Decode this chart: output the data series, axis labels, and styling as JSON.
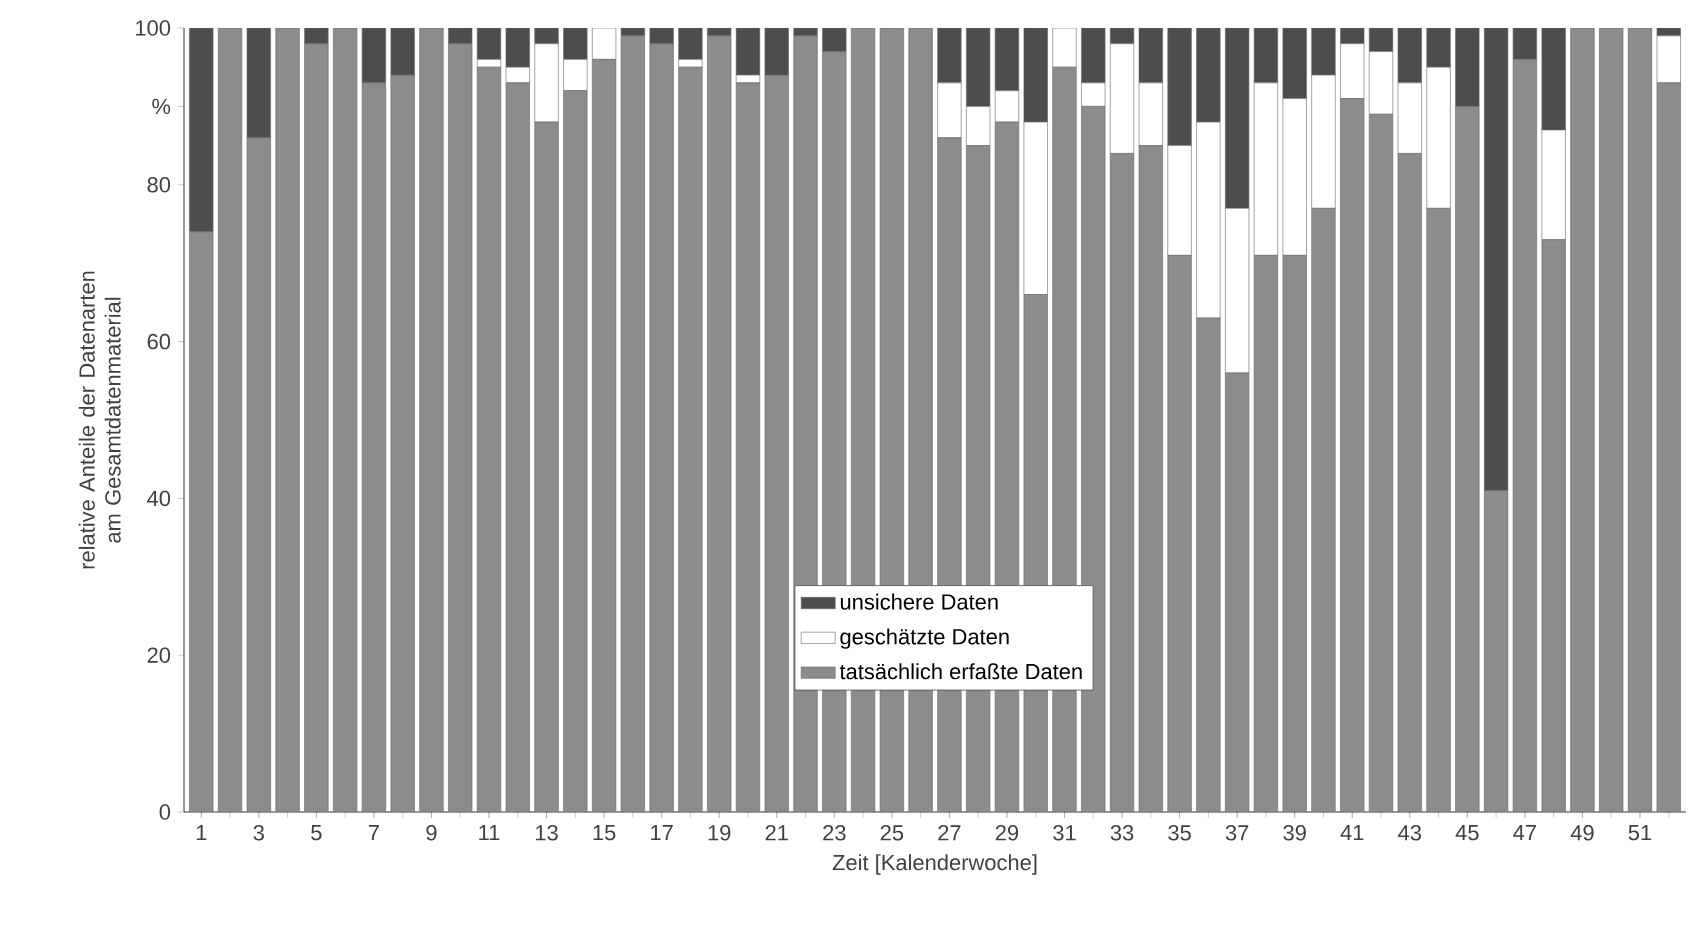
{
  "chart_data": {
    "type": "bar",
    "stacked": true,
    "xlabel": "Zeit [Kalenderwoche]",
    "ylabel": "relative Anteile der Datenarten am Gesamtdatenmaterial",
    "categories": [
      "1",
      null,
      "3",
      null,
      "5",
      null,
      "7",
      null,
      "9",
      null,
      "11",
      null,
      "13",
      null,
      "15",
      null,
      "17",
      null,
      "19",
      null,
      "21",
      null,
      "23",
      null,
      "25",
      null,
      "27",
      null,
      "29",
      null,
      "31",
      null,
      "33",
      null,
      "35",
      null,
      "37",
      null,
      "39",
      null,
      "41",
      null,
      "43",
      null,
      "45",
      null,
      "47",
      null,
      "49",
      null,
      "51",
      null
    ],
    "series": [
      {
        "name": "tatsächlich erfaßte Daten",
        "color": "#8c8c8c",
        "values": [
          74,
          100,
          86,
          100,
          98,
          100,
          93,
          94,
          100,
          98,
          95,
          93,
          88,
          92,
          96,
          99,
          98,
          95,
          99,
          93,
          94,
          99,
          97,
          100,
          100,
          100,
          86,
          85,
          88,
          66,
          95,
          90,
          84,
          85,
          71,
          63,
          56,
          71,
          71,
          77,
          91,
          89,
          84,
          77,
          90,
          41,
          96,
          73,
          100,
          100,
          100,
          93
        ]
      },
      {
        "name": "geschätzte Daten",
        "color": "#ffffff",
        "values": [
          0,
          0,
          0,
          0,
          0,
          0,
          0,
          0,
          0,
          0,
          1,
          2,
          10,
          4,
          4,
          0,
          0,
          1,
          0,
          1,
          0,
          0,
          0,
          0,
          0,
          0,
          7,
          5,
          4,
          22,
          5,
          3,
          14,
          8,
          14,
          25,
          21,
          22,
          20,
          17,
          7,
          8,
          9,
          18,
          0,
          0,
          0,
          14,
          0,
          0,
          0,
          6
        ]
      },
      {
        "name": "unsichere Daten",
        "color": "#4d4d4d",
        "values": [
          26,
          0,
          14,
          0,
          2,
          0,
          7,
          6,
          0,
          2,
          4,
          5,
          2,
          4,
          0,
          1,
          2,
          4,
          1,
          6,
          6,
          1,
          3,
          0,
          0,
          0,
          7,
          10,
          8,
          12,
          0,
          7,
          2,
          7,
          15,
          12,
          23,
          7,
          9,
          6,
          2,
          3,
          7,
          5,
          10,
          59,
          4,
          13,
          0,
          0,
          0,
          1
        ]
      }
    ],
    "ylim": [
      0,
      100
    ],
    "yticks": [
      0,
      20,
      40,
      60,
      80,
      {
        "value": 90,
        "label": "%"
      },
      100
    ],
    "grid": false,
    "legend": "bottom"
  }
}
